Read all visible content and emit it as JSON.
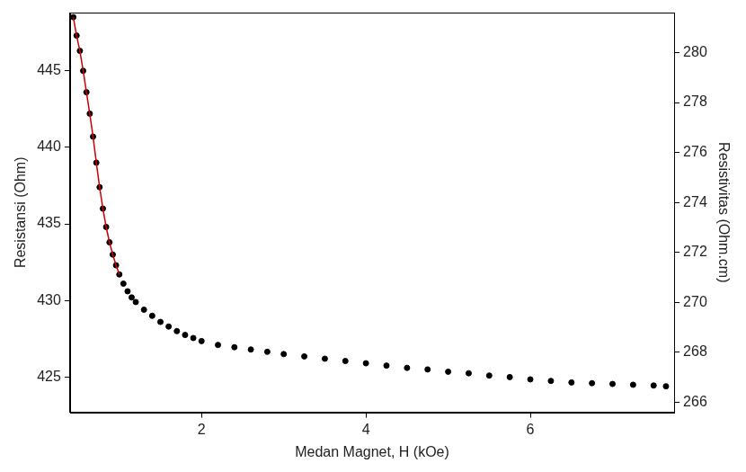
{
  "chart_data": {
    "type": "scatter",
    "x_label": "Medan Magnet, H (kOe)",
    "y_label": "Resistansi (Ohm)",
    "y2_label": "Resistivitas (Ohm.cm)",
    "xlim": [
      0.4,
      7.75
    ],
    "xticks": [
      2,
      4,
      6
    ],
    "ylim": [
      422.7,
      448.8
    ],
    "yticks": [
      425,
      430,
      435,
      440,
      445
    ],
    "y2lim": [
      265.6,
      281.6
    ],
    "y2ticks": [
      266,
      268,
      270,
      272,
      274,
      276,
      278,
      280
    ],
    "grid": false,
    "series": [
      {
        "type": "line",
        "color": "#cc0000",
        "marker": "none",
        "line_style": "solid",
        "x": [
          0.44,
          0.48,
          0.52,
          0.56,
          0.6,
          0.64,
          0.68,
          0.72,
          0.76,
          0.8,
          0.84,
          0.88,
          0.92,
          0.96,
          1.0
        ],
        "values": [
          448.5,
          447.3,
          446.3,
          445.0,
          443.6,
          442.2,
          440.7,
          439.0,
          437.4,
          436.0,
          434.8,
          433.8,
          433.0,
          432.3,
          431.7
        ]
      },
      {
        "type": "scatter",
        "color": "#000000",
        "marker": "circle",
        "x": [
          0.44,
          0.48,
          0.52,
          0.56,
          0.6,
          0.64,
          0.68,
          0.72,
          0.76,
          0.8,
          0.84,
          0.88,
          0.92,
          0.96,
          1.0,
          1.05,
          1.1,
          1.15,
          1.2,
          1.3,
          1.4,
          1.5,
          1.6,
          1.7,
          1.8,
          1.9,
          2.0,
          2.2,
          2.4,
          2.6,
          2.8,
          3.0,
          3.25,
          3.5,
          3.75,
          4.0,
          4.25,
          4.5,
          4.75,
          5.0,
          5.25,
          5.5,
          5.75,
          6.0,
          6.25,
          6.5,
          6.75,
          7.0,
          7.25,
          7.5,
          7.65
        ],
        "values": [
          448.5,
          447.3,
          446.3,
          445.0,
          443.6,
          442.2,
          440.7,
          439.0,
          437.4,
          436.0,
          434.8,
          433.8,
          433.0,
          432.3,
          431.7,
          431.1,
          430.6,
          430.2,
          429.9,
          429.4,
          429.0,
          428.6,
          428.3,
          428.0,
          427.75,
          427.55,
          427.35,
          427.1,
          426.95,
          426.8,
          426.65,
          426.5,
          426.35,
          426.2,
          426.05,
          425.9,
          425.75,
          425.6,
          425.5,
          425.35,
          425.25,
          425.1,
          425.0,
          424.85,
          424.75,
          424.65,
          424.6,
          424.55,
          424.5,
          424.45,
          424.4
        ]
      }
    ]
  }
}
